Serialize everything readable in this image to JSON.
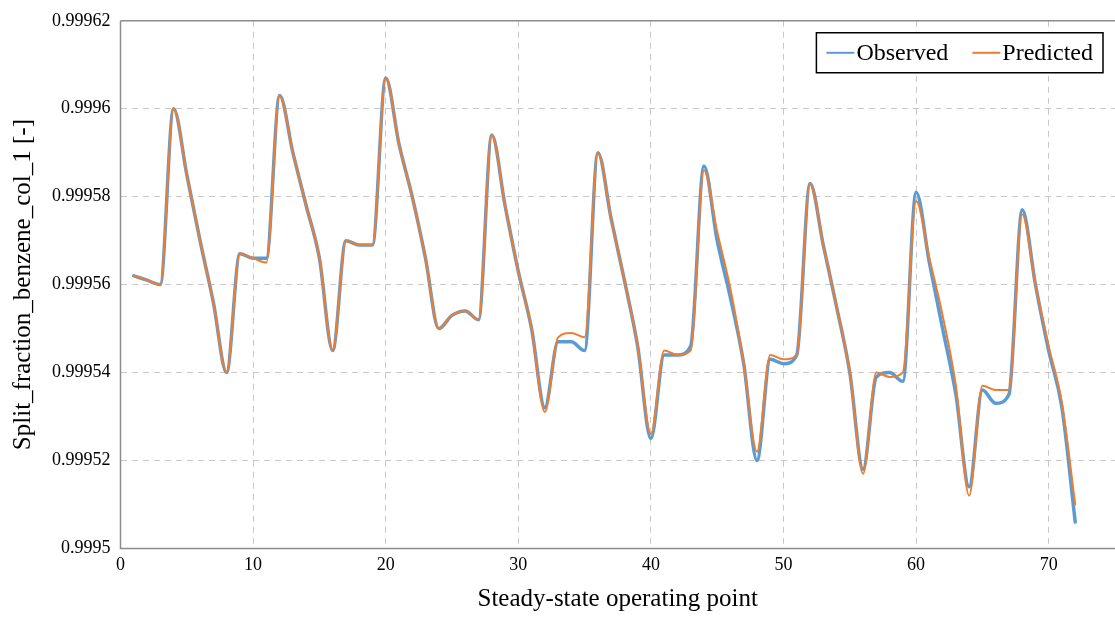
{
  "chart_data": {
    "type": "line",
    "xlabel": "Steady-state operating point",
    "ylabel": "Split_fraction_benzene_col_1 [-]",
    "x": [
      1,
      2,
      3,
      4,
      5,
      6,
      7,
      8,
      9,
      10,
      11,
      12,
      13,
      14,
      15,
      16,
      17,
      18,
      19,
      20,
      21,
      22,
      23,
      24,
      25,
      26,
      27,
      28,
      29,
      30,
      31,
      32,
      33,
      34,
      35,
      36,
      37,
      38,
      39,
      40,
      41,
      42,
      43,
      44,
      45,
      46,
      47,
      48,
      49,
      50,
      51,
      52,
      53,
      54,
      55,
      56,
      57,
      58,
      59,
      60,
      61,
      62,
      63,
      64,
      65,
      66,
      67,
      68,
      69,
      70,
      71,
      72
    ],
    "series": [
      {
        "name": "Observed",
        "color": "#5b9bd5",
        "values": [
          0.999562,
          0.999561,
          0.99956,
          0.9996,
          0.999585,
          0.99957,
          0.999556,
          0.99954,
          0.999567,
          0.999566,
          0.999566,
          0.999603,
          0.99959,
          0.999578,
          0.999566,
          0.999545,
          0.99957,
          0.999569,
          0.999569,
          0.999607,
          0.999592,
          0.99958,
          0.999566,
          0.99955,
          0.999553,
          0.999554,
          0.999552,
          0.999594,
          0.999578,
          0.999563,
          0.99955,
          0.999532,
          0.999547,
          0.999547,
          0.999545,
          0.99959,
          0.999575,
          0.999561,
          0.999546,
          0.999525,
          0.999544,
          0.999544,
          0.999546,
          0.999587,
          0.99957,
          0.999557,
          0.999542,
          0.99952,
          0.999543,
          0.999542,
          0.999544,
          0.999583,
          0.999569,
          0.999555,
          0.99954,
          0.999518,
          0.999539,
          0.99954,
          0.999538,
          0.999581,
          0.999565,
          0.99955,
          0.999535,
          0.999514,
          0.999536,
          0.999533,
          0.999535,
          0.999577,
          0.99956,
          0.999545,
          0.999532,
          0.999506
        ]
      },
      {
        "name": "Predicted",
        "color": "#ed7d31",
        "values": [
          0.999562,
          0.999561,
          0.99956,
          0.9996,
          0.999585,
          0.99957,
          0.999556,
          0.99954,
          0.999567,
          0.999566,
          0.999565,
          0.999603,
          0.99959,
          0.999578,
          0.999566,
          0.999545,
          0.99957,
          0.999569,
          0.999569,
          0.999607,
          0.999592,
          0.99958,
          0.999566,
          0.99955,
          0.999553,
          0.999554,
          0.999552,
          0.999594,
          0.999578,
          0.999563,
          0.99955,
          0.999531,
          0.999548,
          0.999549,
          0.999548,
          0.99959,
          0.999575,
          0.999561,
          0.999546,
          0.999526,
          0.999545,
          0.999544,
          0.999545,
          0.999586,
          0.999572,
          0.999559,
          0.999542,
          0.999522,
          0.999544,
          0.999543,
          0.999544,
          0.999583,
          0.999569,
          0.999555,
          0.99954,
          0.999517,
          0.99954,
          0.999539,
          0.99954,
          0.999579,
          0.999566,
          0.999553,
          0.999537,
          0.999512,
          0.999537,
          0.999536,
          0.999536,
          0.999576,
          0.99956,
          0.999546,
          0.999533,
          0.99951
        ]
      }
    ],
    "xlim": [
      0,
      75
    ],
    "xticks": [
      0,
      10,
      20,
      30,
      40,
      50,
      60,
      70
    ],
    "ylim": [
      0.9995,
      0.99962
    ],
    "yticks": [
      0.9995,
      0.99952,
      0.99954,
      0.99956,
      0.99958,
      0.9996,
      0.99962
    ],
    "grid": true,
    "legend": "top right",
    "marker": "none",
    "line_style": "solid"
  }
}
